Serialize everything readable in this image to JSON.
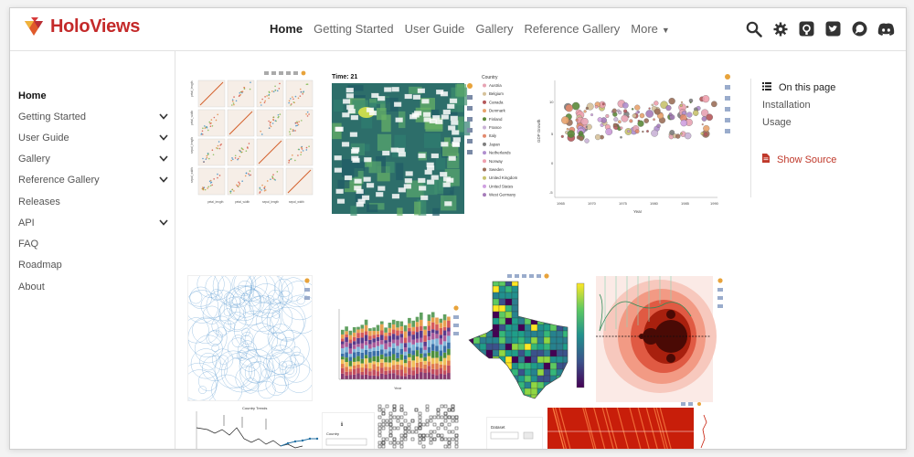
{
  "app": {
    "logo_text": "HoloViews"
  },
  "navbar": {
    "links": [
      "Home",
      "Getting Started",
      "User Guide",
      "Gallery",
      "Reference Gallery",
      "More"
    ],
    "icons": [
      "search-icon",
      "gear-icon",
      "github-icon",
      "twitter-icon",
      "discourse-icon",
      "discord-icon"
    ]
  },
  "sidebar": {
    "items": [
      {
        "label": "Home",
        "active": true,
        "expandable": false
      },
      {
        "label": "Getting Started",
        "expandable": true
      },
      {
        "label": "User Guide",
        "expandable": true
      },
      {
        "label": "Gallery",
        "expandable": true
      },
      {
        "label": "Reference Gallery",
        "expandable": true
      },
      {
        "label": "Releases",
        "expandable": false
      },
      {
        "label": "API",
        "expandable": true
      },
      {
        "label": "FAQ",
        "expandable": false
      },
      {
        "label": "Roadmap",
        "expandable": false
      },
      {
        "label": "About",
        "expandable": false
      }
    ]
  },
  "toc": {
    "title": "On this page",
    "links": [
      "Installation",
      "Usage"
    ],
    "show_source": "Show Source"
  },
  "gallery": {
    "heatmap_title": "Time: 21",
    "legend_title": "Country",
    "countries": [
      "Austria",
      "Belgium",
      "Canada",
      "Denmark",
      "Finland",
      "France",
      "Italy",
      "Japan",
      "Netherlands",
      "Norway",
      "Sweden",
      "United Kingdom",
      "United States",
      "West Germany"
    ],
    "gdp_ylabel": "GDP Growth",
    "gdp_xlabel": "Year",
    "gdp_xticks": [
      "1965",
      "1970",
      "1975",
      "1980",
      "1985",
      "1990"
    ],
    "gdp_yticks": [
      "10",
      "5",
      "0",
      "-5"
    ],
    "bars_xlabel": "Year",
    "splom_xlabels": [
      "petal_length",
      "petal_width",
      "sepal_length",
      "sepal_width"
    ],
    "splom_ylabels": [
      "petal_length",
      "petal_width",
      "sepal_length",
      "sepal_width"
    ],
    "timeline_title": "Country Trends",
    "widget_label": "Dataset"
  },
  "colors": {
    "brand": "#c42a2a",
    "accent_red": "#c0392b"
  }
}
